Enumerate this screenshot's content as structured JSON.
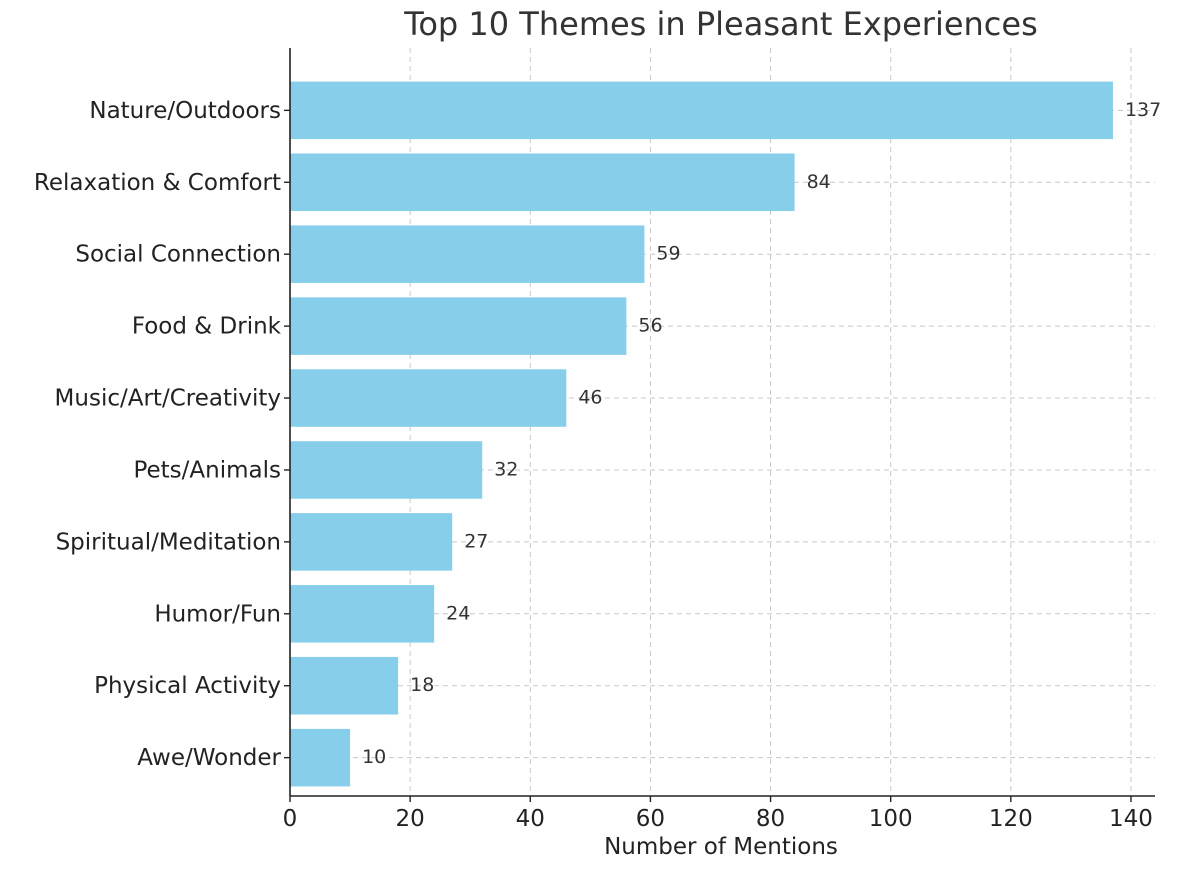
{
  "chart_data": {
    "type": "bar",
    "orientation": "horizontal",
    "title": "Top 10 Themes in Pleasant Experiences",
    "xlabel": "Number of Mentions",
    "ylabel": "",
    "categories": [
      "Nature/Outdoors",
      "Relaxation & Comfort",
      "Social Connection",
      "Food & Drink",
      "Music/Art/Creativity",
      "Pets/Animals",
      "Spiritual/Meditation",
      "Humor/Fun",
      "Physical Activity",
      "Awe/Wonder"
    ],
    "values": [
      137,
      84,
      59,
      56,
      46,
      32,
      27,
      24,
      18,
      10
    ],
    "value_labels": [
      "137",
      "84",
      "59",
      "56",
      "46",
      "32",
      "27",
      "24",
      "18",
      "10"
    ],
    "xlim": [
      0,
      144
    ],
    "xticks": [
      0,
      20,
      40,
      60,
      80,
      100,
      120,
      140
    ],
    "xtick_labels": [
      "0",
      "20",
      "40",
      "60",
      "80",
      "100",
      "120",
      "140"
    ],
    "grid": true,
    "bar_color": "#87CEEB"
  }
}
